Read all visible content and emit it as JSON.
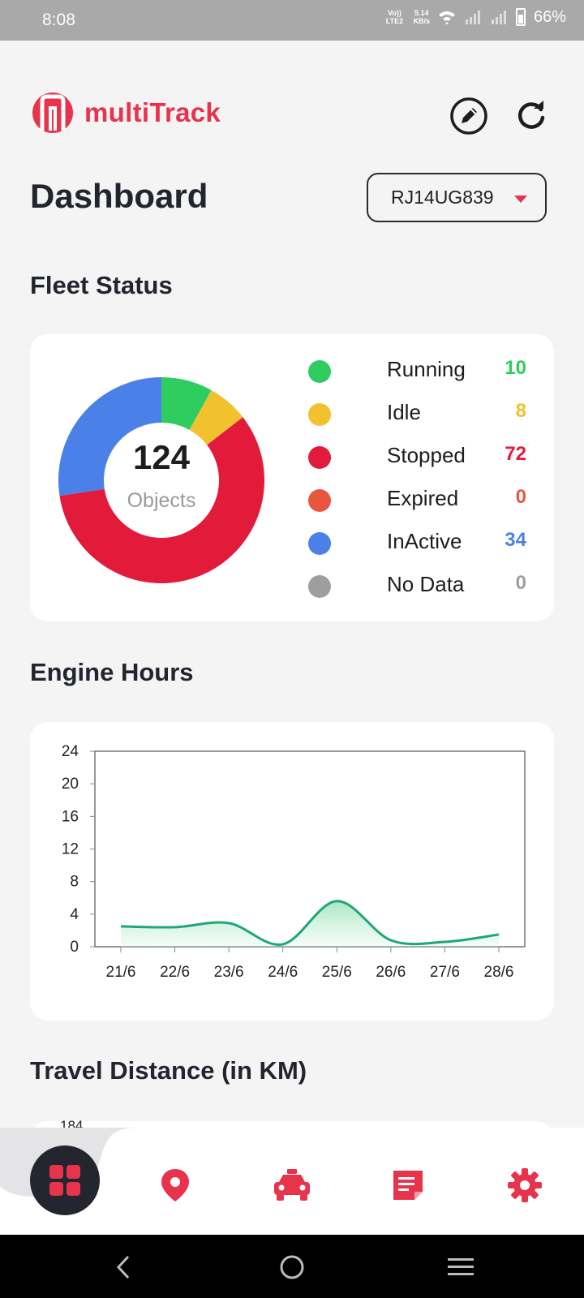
{
  "status_bar": {
    "time": "8:08",
    "network_label_1": "Vo)) LTE2",
    "speed": "5.14",
    "speed_unit": "KB/s",
    "battery": "66%"
  },
  "header": {
    "app_name": "multiTrack",
    "edit_icon": "pencil-circle-icon",
    "refresh_icon": "refresh-icon"
  },
  "page_title": "Dashboard",
  "vehicle_select": {
    "value": "RJ14UG839"
  },
  "fleet_status": {
    "title": "Fleet Status",
    "total": "124",
    "total_label": "Objects",
    "items": [
      {
        "label": "Running",
        "value": "10",
        "color": "#2fcd5f"
      },
      {
        "label": "Idle",
        "value": "8",
        "color": "#f2c12e"
      },
      {
        "label": "Stopped",
        "value": "72",
        "color": "#e31b3b"
      },
      {
        "label": "Expired",
        "value": "0",
        "color": "#e8563f"
      },
      {
        "label": "InActive",
        "value": "34",
        "color": "#4a80e8"
      },
      {
        "label": "No Data",
        "value": "0",
        "color": "#9e9e9e"
      }
    ]
  },
  "engine_hours": {
    "title": "Engine Hours"
  },
  "travel_distance": {
    "title": "Travel Distance (in KM)",
    "first_tick": "184"
  },
  "chart_data": {
    "type": "area",
    "title": "Engine Hours",
    "xlabel": "",
    "ylabel": "",
    "categories": [
      "21/6",
      "22/6",
      "23/6",
      "24/6",
      "25/6",
      "26/6",
      "27/6",
      "28/6"
    ],
    "values": [
      2.5,
      2.4,
      2.9,
      0.3,
      5.6,
      0.8,
      0.6,
      1.5
    ],
    "ylim": [
      0,
      24
    ],
    "yticks": [
      0,
      4,
      8,
      12,
      16,
      20,
      24
    ],
    "line_color": "#1fa67a",
    "grid": false
  },
  "bottom_nav": {
    "items": [
      "dashboard-icon",
      "location-pin-icon",
      "car-icon",
      "report-icon",
      "settings-icon"
    ],
    "accent": "#e8334d"
  }
}
